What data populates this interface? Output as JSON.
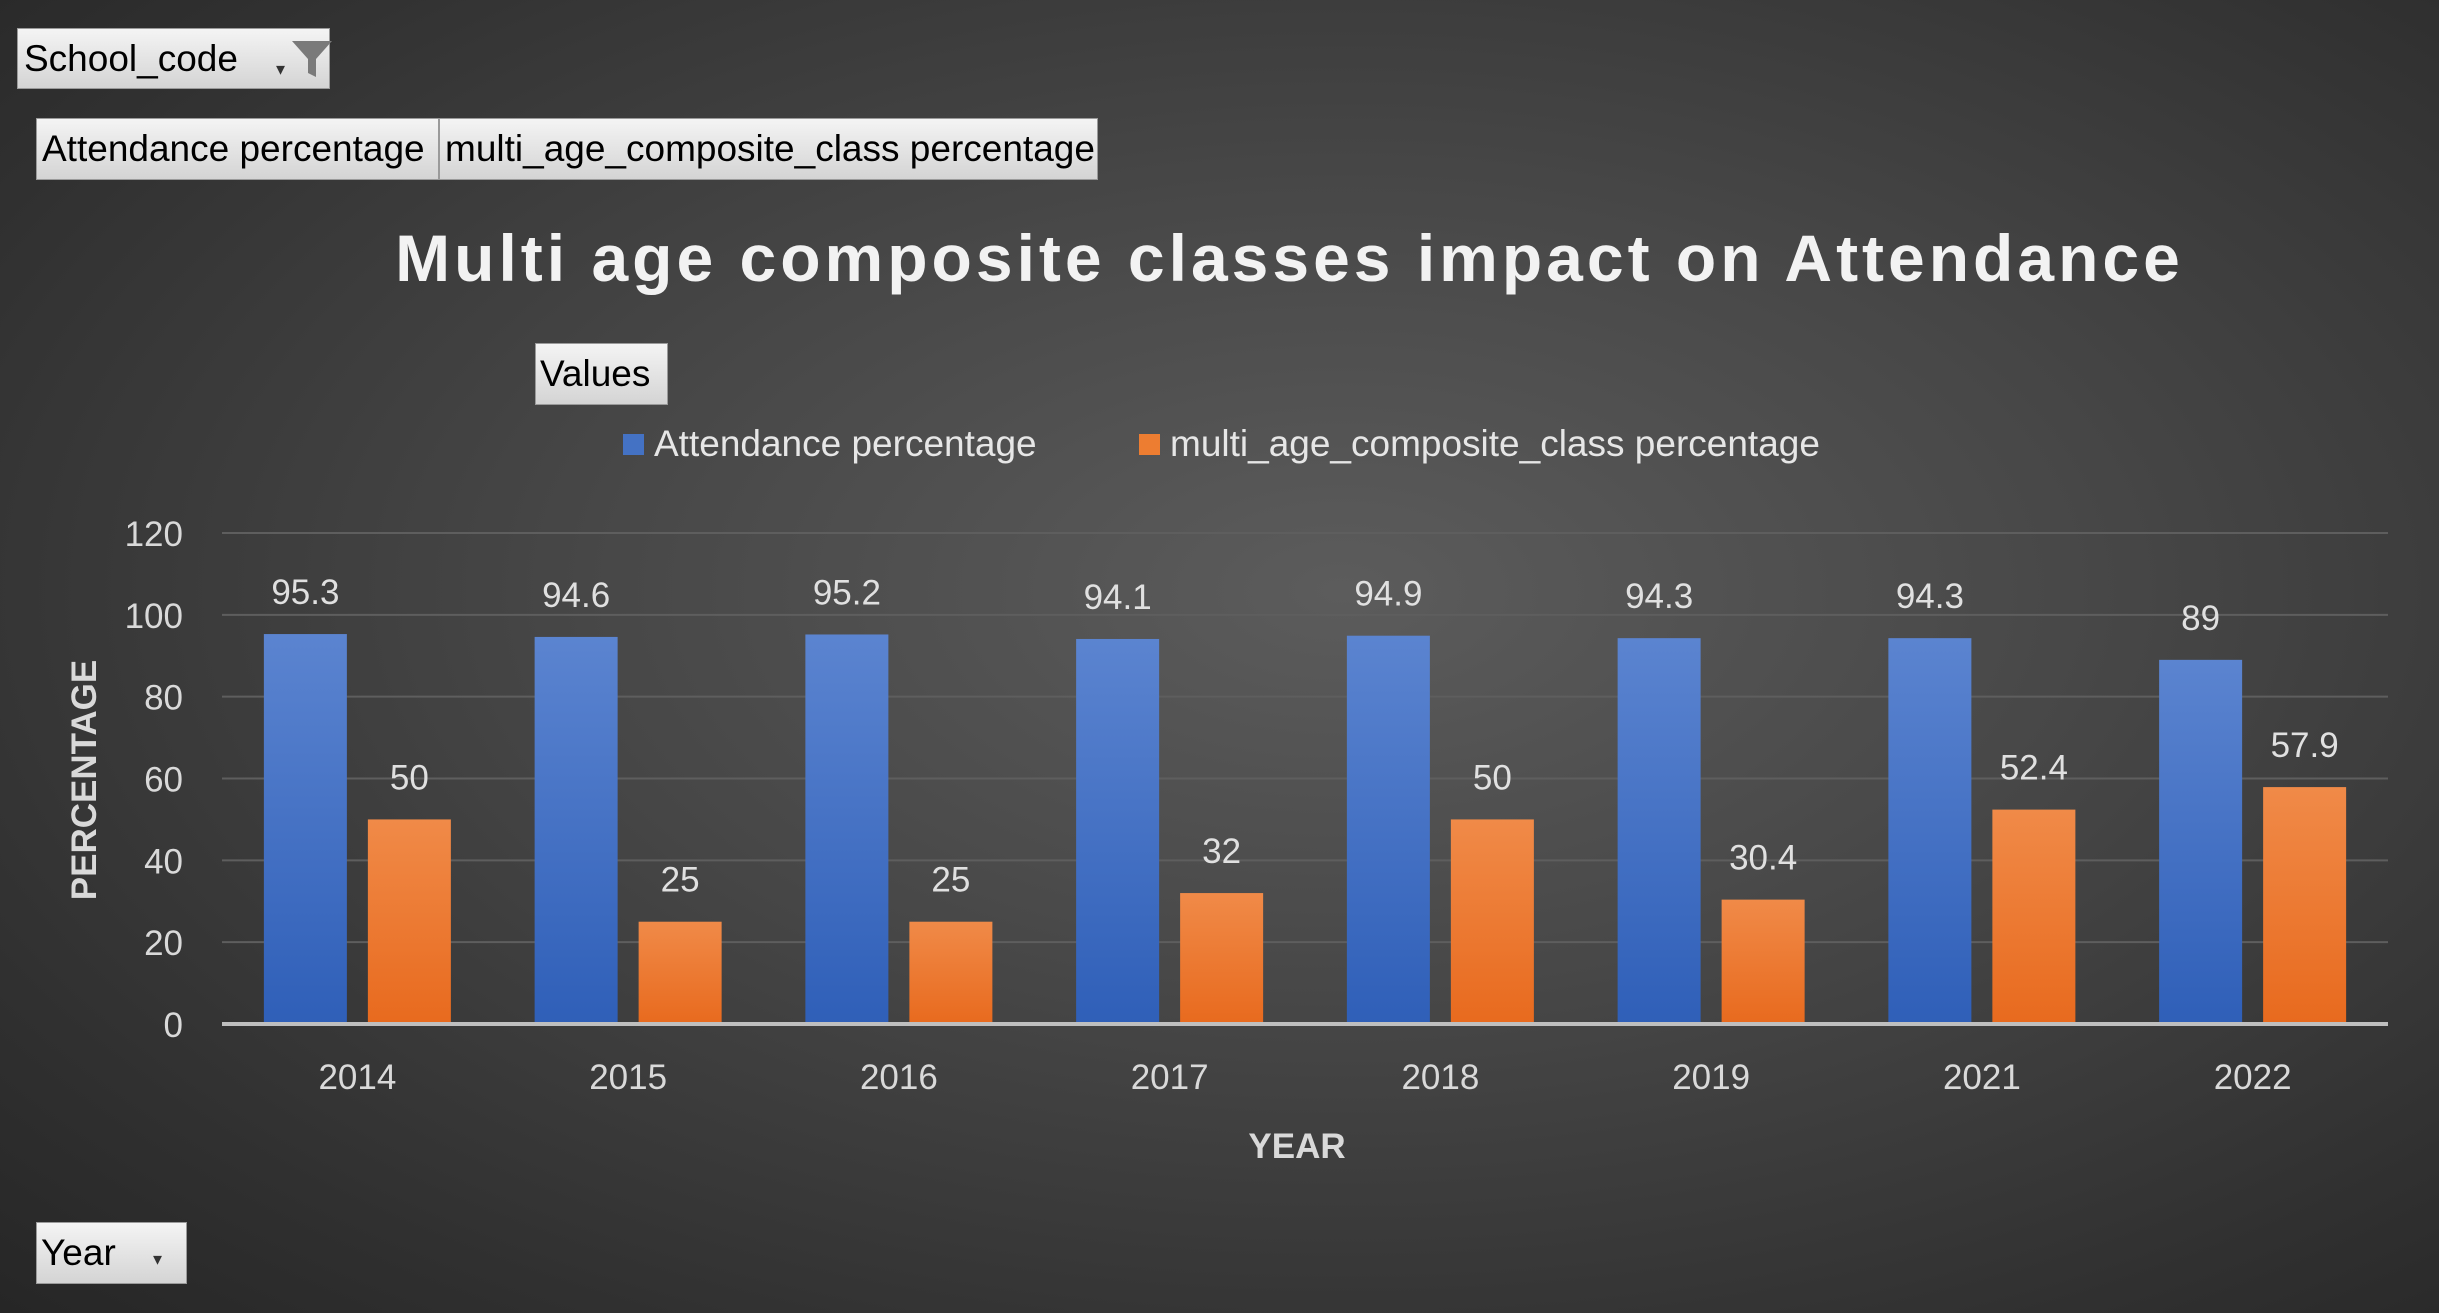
{
  "filters": {
    "school_code_label": "School_code",
    "year_label": "Year"
  },
  "field_buttons": {
    "attendance": "Attendance percentage",
    "multi_age": "multi_age_composite_class percentage",
    "values": "Values"
  },
  "colors": {
    "attendance": "#4472c4",
    "multi_age": "#ed7d31"
  },
  "chart_data": {
    "type": "bar",
    "title": "Multi age composite classes impact on Attendance",
    "xlabel": "YEAR",
    "ylabel": "PERCENTAGE",
    "ylim": [
      0,
      120
    ],
    "yticks": [
      0,
      20,
      40,
      60,
      80,
      100,
      120
    ],
    "categories": [
      "2014",
      "2015",
      "2016",
      "2017",
      "2018",
      "2019",
      "2021",
      "2022"
    ],
    "series": [
      {
        "name": "Attendance percentage",
        "values": [
          95.3,
          94.6,
          95.2,
          94.1,
          94.9,
          94.3,
          94.3,
          89
        ]
      },
      {
        "name": "multi_age_composite_class percentage",
        "values": [
          50,
          25,
          25,
          32,
          50,
          30.4,
          52.4,
          57.9
        ]
      }
    ],
    "grid": true,
    "legend_position": "top"
  }
}
